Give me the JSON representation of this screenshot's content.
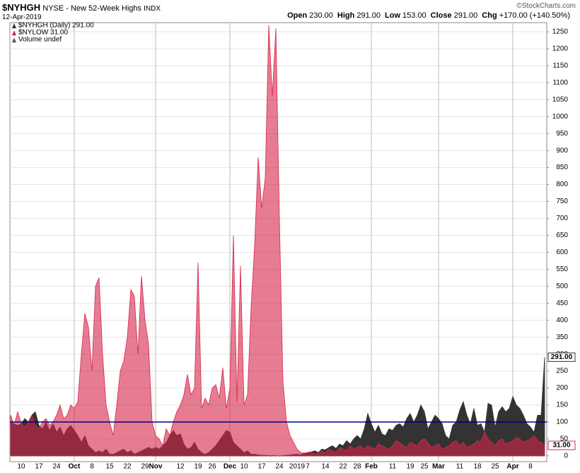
{
  "header": {
    "symbol": "$NYHGH",
    "name": "NYSE - New 52-Week Highs",
    "exchange": "INDX",
    "date": "12-Apr-2019",
    "stats": [
      {
        "label": "Open",
        "value": "230.00"
      },
      {
        "label": "High",
        "value": "291.00"
      },
      {
        "label": "Low",
        "value": "153.00"
      },
      {
        "label": "Close",
        "value": "291.00"
      },
      {
        "label": "Chg",
        "value": "+170.00 (+140.50%)"
      }
    ],
    "credit": "©StockCharts.com"
  },
  "chart_data": {
    "type": "area",
    "legend": [
      "$NYHGH (Daily) 291.00",
      "$NYLOW 31.00",
      "Volume undef"
    ],
    "categories": [
      null,
      null,
      null,
      "10",
      null,
      null,
      null,
      null,
      "17",
      null,
      null,
      null,
      null,
      "24",
      null,
      null,
      null,
      null,
      "Oct",
      null,
      null,
      null,
      null,
      "8",
      null,
      null,
      null,
      null,
      "15",
      null,
      null,
      null,
      null,
      "22",
      null,
      null,
      null,
      null,
      "29",
      null,
      null,
      "Nov",
      null,
      null,
      null,
      null,
      null,
      null,
      "12",
      null,
      null,
      null,
      null,
      "19",
      null,
      null,
      null,
      "26",
      null,
      null,
      null,
      null,
      "Dec",
      null,
      null,
      null,
      "10",
      null,
      null,
      null,
      null,
      "17",
      null,
      null,
      null,
      null,
      "24",
      null,
      null,
      null,
      null,
      "2019",
      null,
      null,
      "7",
      null,
      null,
      null,
      null,
      "14",
      null,
      null,
      null,
      null,
      "22",
      null,
      null,
      null,
      "28",
      null,
      null,
      null,
      "Feb",
      null,
      null,
      null,
      null,
      null,
      "11",
      null,
      null,
      null,
      null,
      "19",
      null,
      null,
      null,
      "25",
      null,
      null,
      null,
      "Mar",
      null,
      null,
      null,
      null,
      null,
      "11",
      null,
      null,
      null,
      null,
      "18",
      null,
      null,
      null,
      null,
      "25",
      null,
      null,
      null,
      null,
      "Apr",
      null,
      null,
      null,
      null,
      "8",
      null,
      null,
      null,
      null
    ],
    "series": [
      {
        "name": "$NYHGH",
        "color": "#333333",
        "last_label": "291.00",
        "values": [
          100,
          95,
          90,
          95,
          110,
          100,
          120,
          130,
          90,
          80,
          100,
          75,
          95,
          70,
          85,
          60,
          80,
          90,
          75,
          60,
          40,
          60,
          30,
          20,
          10,
          15,
          10,
          20,
          5,
          5,
          10,
          15,
          20,
          10,
          15,
          5,
          10,
          15,
          20,
          25,
          20,
          25,
          20,
          30,
          40,
          60,
          75,
          60,
          65,
          35,
          20,
          25,
          40,
          20,
          10,
          5,
          10,
          20,
          30,
          45,
          60,
          75,
          70,
          40,
          30,
          20,
          10,
          15,
          5,
          5,
          3,
          2,
          2,
          1,
          1,
          1,
          0,
          1,
          2,
          3,
          4,
          5,
          3,
          8,
          10,
          12,
          15,
          10,
          20,
          18,
          25,
          30,
          22,
          35,
          30,
          45,
          35,
          50,
          60,
          50,
          80,
          125,
          95,
          70,
          90,
          65,
          60,
          80,
          75,
          90,
          95,
          85,
          110,
          125,
          100,
          120,
          150,
          130,
          80,
          100,
          120,
          110,
          95,
          60,
          50,
          90,
          100,
          135,
          160,
          120,
          95,
          140,
          90,
          95,
          70,
          155,
          150,
          85,
          130,
          145,
          130,
          140,
          175,
          150,
          140,
          120,
          95,
          85,
          70,
          120,
          120,
          291
        ]
      },
      {
        "name": "$NYLOW",
        "color": "#d6254a",
        "last_label": "31.00",
        "values": [
          120,
          90,
          130,
          95,
          85,
          100,
          120,
          90,
          80,
          100,
          110,
          90,
          100,
          120,
          150,
          110,
          120,
          150,
          140,
          160,
          300,
          420,
          380,
          250,
          500,
          525,
          300,
          150,
          100,
          60,
          150,
          250,
          280,
          350,
          490,
          470,
          300,
          530,
          400,
          330,
          100,
          60,
          50,
          30,
          80,
          60,
          100,
          130,
          150,
          180,
          240,
          180,
          200,
          570,
          140,
          170,
          150,
          200,
          210,
          170,
          260,
          140,
          200,
          650,
          160,
          560,
          150,
          180,
          440,
          620,
          880,
          730,
          820,
          1270,
          1060,
          1260,
          700,
          220,
          100,
          60,
          40,
          20,
          10,
          8,
          10,
          12,
          5,
          8,
          15,
          10,
          20,
          15,
          10,
          25,
          20,
          15,
          30,
          20,
          25,
          30,
          20,
          30,
          25,
          20,
          35,
          30,
          25,
          20,
          30,
          45,
          40,
          30,
          25,
          40,
          35,
          30,
          45,
          50,
          40,
          25,
          30,
          35,
          20,
          25,
          30,
          40,
          45,
          30,
          40,
          25,
          30,
          35,
          45,
          40,
          70,
          50,
          40,
          30,
          45,
          50,
          35,
          40,
          45,
          55,
          50,
          40,
          45,
          50,
          60,
          45,
          40,
          31
        ]
      }
    ],
    "hline": 100,
    "hline_color": "#000080",
    "ylim": [
      -17,
      1277
    ],
    "yticks": [
      0,
      50,
      100,
      150,
      200,
      250,
      300,
      350,
      400,
      450,
      500,
      550,
      600,
      650,
      700,
      750,
      800,
      850,
      900,
      950,
      1000,
      1050,
      1100,
      1150,
      1200,
      1250
    ],
    "grid": true
  }
}
